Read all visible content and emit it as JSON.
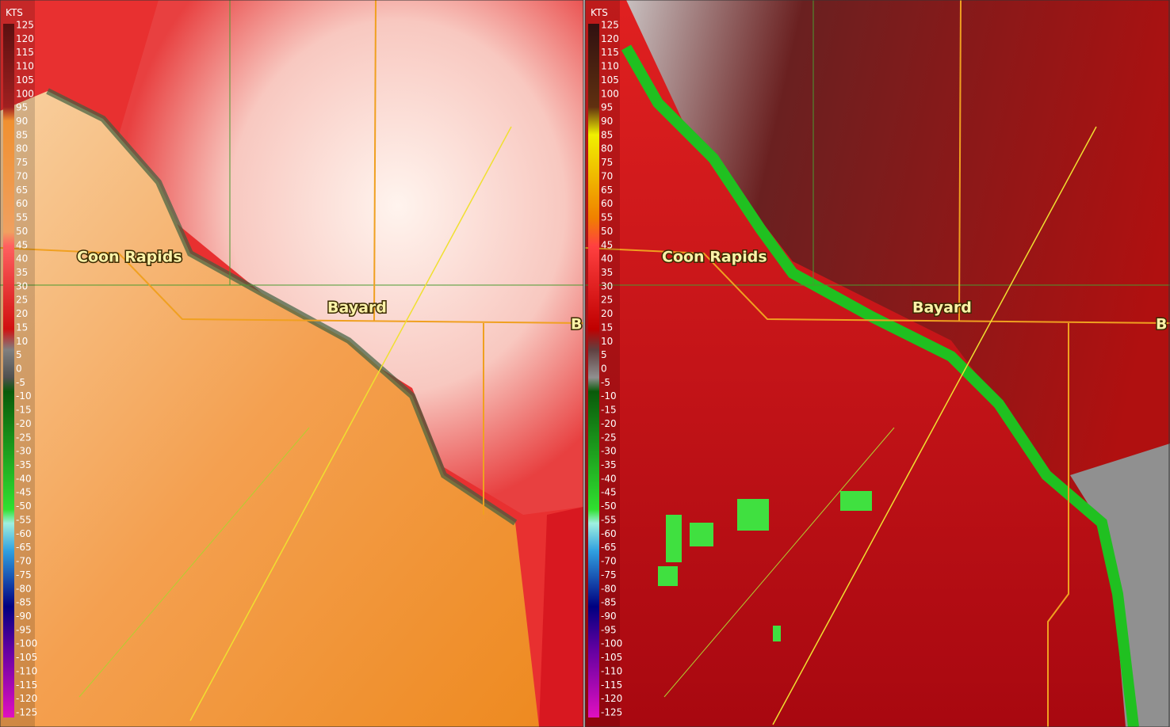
{
  "panels": [
    {
      "legend": {
        "unit": "KTS",
        "ticks": [
          125,
          120,
          115,
          110,
          105,
          100,
          95,
          90,
          85,
          80,
          75,
          70,
          65,
          60,
          55,
          50,
          45,
          40,
          35,
          30,
          25,
          20,
          15,
          10,
          5,
          0,
          -5,
          -10,
          -15,
          -20,
          -25,
          -30,
          -35,
          -40,
          -45,
          -50,
          -55,
          -60,
          -65,
          -70,
          -75,
          -80,
          -85,
          -90,
          -95,
          -100,
          -105,
          -110,
          -115,
          -120,
          -125
        ]
      },
      "places": [
        "Coon Rapids",
        "Bayard",
        "B"
      ]
    },
    {
      "legend": {
        "unit": "KTS",
        "ticks": [
          125,
          120,
          115,
          110,
          105,
          100,
          95,
          90,
          85,
          80,
          75,
          70,
          65,
          60,
          55,
          50,
          45,
          40,
          35,
          30,
          25,
          20,
          15,
          10,
          5,
          0,
          -5,
          -10,
          -15,
          -20,
          -25,
          -30,
          -35,
          -40,
          -45,
          -50,
          -55,
          -60,
          -65,
          -70,
          -75,
          -80,
          -85,
          -90,
          -95,
          -100,
          -105,
          -110,
          -115,
          -120,
          -125
        ]
      },
      "places": [
        "Coon Rapids",
        "Bayard",
        "B"
      ]
    }
  ]
}
